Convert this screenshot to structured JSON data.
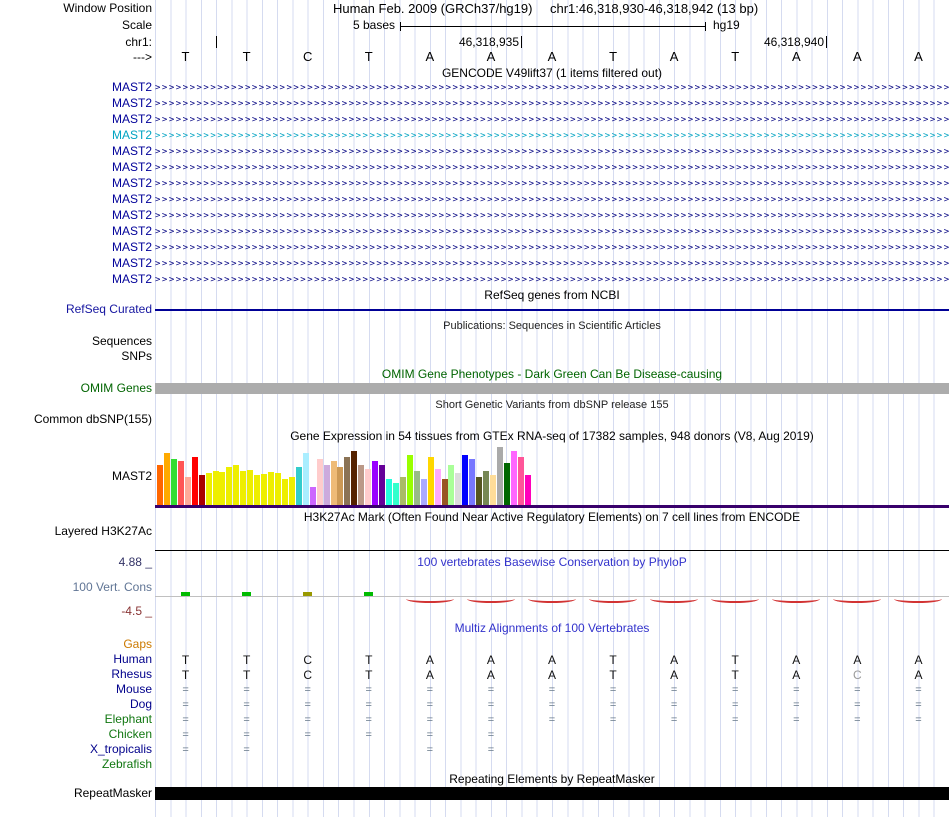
{
  "header": {
    "window_position_label": "Window Position",
    "assembly": "Human Feb. 2009 (GRCh37/hg19)",
    "position": "chr1:46,318,930-46,318,942 (13 bp)",
    "scale_label": "Scale",
    "scale_text": "5 bases",
    "genome": "hg19",
    "chrom_label": "chr1:",
    "strand_label": "--->",
    "ruler_labels": [
      "46,318,935",
      "46,318,940"
    ]
  },
  "sequence": {
    "bases": [
      "T",
      "T",
      "C",
      "T",
      "A",
      "A",
      "A",
      "T",
      "A",
      "T",
      "A",
      "A",
      "A"
    ]
  },
  "gencode": {
    "title": "GENCODE V49lift37 (1 items filtered out)",
    "gene_label": "MAST2",
    "row_count": 13,
    "alt_row_index": 3,
    "color": "#000080",
    "label_color": "#000099",
    "alt_color": "#00A3C2",
    "arrow_char": ">"
  },
  "refseq": {
    "title": "RefSeq genes from NCBI",
    "label": "RefSeq Curated",
    "color": "#000096"
  },
  "publications": {
    "title": "Publications: Sequences in Scientific Articles",
    "row_labels": [
      "Sequences",
      "SNPs"
    ]
  },
  "omim": {
    "title": "OMIM Gene Phenotypes - Dark Green Can Be Disease-causing",
    "label": "OMIM Genes",
    "title_color": "#006400",
    "bar_color": "#ACACAC"
  },
  "dbsnp": {
    "title": "Short Genetic Variants from dbSNP release 155",
    "label": "Common dbSNP(155)"
  },
  "gtex": {
    "title": "Gene Expression in 54 tissues from GTEx RNA-seq of 17382 samples, 948 donors (V8, Aug 2019)",
    "label": "MAST2",
    "gene_line_color": "#38006B",
    "bars": [
      [
        "#FF6600",
        40
      ],
      [
        "#FFAA00",
        52
      ],
      [
        "#33DD33",
        46
      ],
      [
        "#FF5555",
        44
      ],
      [
        "#FFAA99",
        28
      ],
      [
        "#FF0000",
        48
      ],
      [
        "#AA0000",
        30
      ],
      [
        "#EEEE00",
        32
      ],
      [
        "#EEEE00",
        34
      ],
      [
        "#EEEE00",
        33
      ],
      [
        "#EEEE00",
        38
      ],
      [
        "#EEEE00",
        40
      ],
      [
        "#EEEE00",
        34
      ],
      [
        "#EEEE00",
        35
      ],
      [
        "#EEEE00",
        30
      ],
      [
        "#EEEE00",
        31
      ],
      [
        "#EEEE00",
        33
      ],
      [
        "#EEEE00",
        32
      ],
      [
        "#EEEE00",
        26
      ],
      [
        "#EEEE00",
        28
      ],
      [
        "#33CCCC",
        38
      ],
      [
        "#AAEEFF",
        52
      ],
      [
        "#CC66FF",
        18
      ],
      [
        "#FFCCCC",
        46
      ],
      [
        "#CCAADD",
        40
      ],
      [
        "#EEBB77",
        44
      ],
      [
        "#CC9955",
        38
      ],
      [
        "#8B7355",
        48
      ],
      [
        "#552200",
        54
      ],
      [
        "#BB9988",
        40
      ],
      [
        "#FFCCCC",
        36
      ],
      [
        "#9900FF",
        44
      ],
      [
        "#660099",
        40
      ],
      [
        "#22FFDD",
        26
      ],
      [
        "#33FFCC",
        22
      ],
      [
        "#AABB66",
        28
      ],
      [
        "#99FF00",
        50
      ],
      [
        "#99BB88",
        34
      ],
      [
        "#AAAAFF",
        26
      ],
      [
        "#FFD700",
        48
      ],
      [
        "#FFAAFF",
        36
      ],
      [
        "#995522",
        26
      ],
      [
        "#AAFF99",
        40
      ],
      [
        "#DDDDDD",
        32
      ],
      [
        "#0000FF",
        50
      ],
      [
        "#7777FF",
        46
      ],
      [
        "#555522",
        28
      ],
      [
        "#778855",
        34
      ],
      [
        "#FFDD99",
        30
      ],
      [
        "#AAAAAA",
        58
      ],
      [
        "#006600",
        42
      ],
      [
        "#FF66FF",
        54
      ],
      [
        "#FF5599",
        48
      ],
      [
        "#FF00BB",
        30
      ]
    ]
  },
  "h3k27ac": {
    "title": "H3K27Ac Mark (Often Found Near Active Regulatory Elements) on 7 cell lines from ENCODE",
    "label": "Layered H3K27Ac"
  },
  "phylop": {
    "title": "100 vertebrates Basewise Conservation by PhyloP",
    "label": "100 Vert. Cons",
    "max_label": "4.88 _",
    "min_label": "-4.5 _",
    "marks": [
      {
        "col": 0,
        "type": "green"
      },
      {
        "col": 1,
        "type": "green"
      },
      {
        "col": 2,
        "type": "olive"
      },
      {
        "col": 3,
        "type": "green"
      },
      {
        "col": 4,
        "type": "red"
      },
      {
        "col": 5,
        "type": "red"
      },
      {
        "col": 6,
        "type": "red"
      },
      {
        "col": 7,
        "type": "red"
      },
      {
        "col": 8,
        "type": "red"
      },
      {
        "col": 9,
        "type": "red"
      },
      {
        "col": 10,
        "type": "red"
      },
      {
        "col": 11,
        "type": "red"
      },
      {
        "col": 12,
        "type": "red"
      }
    ]
  },
  "multiz": {
    "title": "Multiz Alignments of 100 Vertebrates",
    "species": [
      {
        "name": "Gaps",
        "label_color": "#CC7A00",
        "cells": [
          "",
          "",
          "",
          "",
          "",
          "",
          "",
          "",
          "",
          "",
          "",
          "",
          ""
        ]
      },
      {
        "name": "Human",
        "label_color": "#00008B",
        "cells": [
          "T",
          "T",
          "C",
          "T",
          "A",
          "A",
          "A",
          "T",
          "A",
          "T",
          "A",
          "A",
          "A"
        ]
      },
      {
        "name": "Rhesus",
        "label_color": "#00008B",
        "cells": [
          "T",
          "T",
          "C",
          "T",
          "A",
          "A",
          "A",
          "T",
          "A",
          "T",
          "A",
          "C",
          "A"
        ],
        "gray_cols": [
          11
        ]
      },
      {
        "name": "Mouse",
        "label_color": "#00008B",
        "cells": [
          "=",
          "=",
          "=",
          "=",
          "=",
          "=",
          "=",
          "=",
          "=",
          "=",
          "=",
          "=",
          "="
        ]
      },
      {
        "name": "Dog",
        "label_color": "#00008B",
        "cells": [
          "=",
          "=",
          "=",
          "=",
          "=",
          "=",
          "=",
          "=",
          "=",
          "=",
          "=",
          "=",
          "="
        ]
      },
      {
        "name": "Elephant",
        "label_color": "#117711",
        "cells": [
          "=",
          "=",
          "=",
          "=",
          "=",
          "=",
          "=",
          "=",
          "=",
          "=",
          "=",
          "=",
          "="
        ]
      },
      {
        "name": "Chicken",
        "label_color": "#117711",
        "cells": [
          "=",
          "=",
          "=",
          "=",
          "=",
          "=",
          "",
          "",
          "",
          "",
          "",
          "",
          ""
        ]
      },
      {
        "name": "X_tropicalis",
        "label_color": "#00008B",
        "cells": [
          "=",
          "=",
          "",
          "",
          "=",
          "=",
          "",
          "",
          "",
          "",
          "",
          "",
          ""
        ]
      },
      {
        "name": "Zebrafish",
        "label_color": "#117711",
        "cells": [
          "",
          "",
          "",
          "",
          "",
          "",
          "",
          "",
          "",
          "",
          "",
          "",
          ""
        ]
      }
    ]
  },
  "repeatmasker": {
    "title": "Repeating Elements by RepeatMasker",
    "label": "RepeatMasker"
  }
}
